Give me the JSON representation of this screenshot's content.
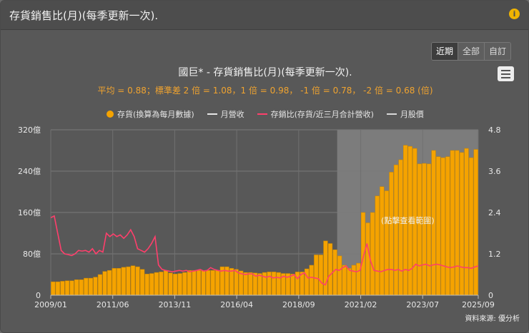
{
  "header": {
    "title": "存貨銷售比(月)(每季更新一次).",
    "info_icon": "info-icon"
  },
  "range_buttons": [
    "近期",
    "全部",
    "自訂"
  ],
  "active_range": "近期",
  "menu_icon": "hamburger-menu-icon",
  "source": "資料來源: 優分析",
  "colors": {
    "inventory": "#f5a300",
    "ratio": "#ff3f6c",
    "revenue": "#e6e6e6",
    "price": "#d9d9d9",
    "highlight": "#888888"
  },
  "chart_data": {
    "type": "bar",
    "title": "國巨* - 存貨銷售比(月)(每季更新一次).",
    "subtitle": "平均 = 0.88；標準差 2 倍 = 1.08，1 倍 = 0.98， -1 倍 = 0.78， -2 倍 = 0.68 (倍)",
    "legend": [
      "存貨(換算為每月數據)",
      "月營收",
      "存銷比(存貨/近三月合計營收)",
      "月股價"
    ],
    "legend_placement": "top",
    "x_tick_labels": [
      "2009/01",
      "2011/06",
      "2013/11",
      "2016/04",
      "2018/09",
      "2021/02",
      "2023/07",
      "2025/09"
    ],
    "y_left_ticks": [
      "0",
      "80億",
      "160億",
      "240億",
      "320億"
    ],
    "y_right_ticks": [
      "0",
      "1.2",
      "2.4",
      "3.6",
      "4.8"
    ],
    "ylim_left": [
      0,
      320
    ],
    "ylim_right": [
      0,
      4.8
    ],
    "highlight_label": "(點擊查看範圍)",
    "highlight_range": [
      "2020/03",
      "2025/09"
    ],
    "series": [
      {
        "name": "存貨(換算為每月數據)",
        "kind": "bar",
        "axis": "left",
        "unit": "億",
        "values": [
          26,
          26,
          27,
          28,
          28,
          30,
          30,
          33,
          33,
          35,
          40,
          46,
          48,
          52,
          52,
          54,
          55,
          57,
          55,
          50,
          41,
          42,
          44,
          45,
          48,
          43,
          41,
          42,
          44,
          48,
          48,
          48,
          48,
          48,
          48,
          48,
          55,
          55,
          52,
          50,
          47,
          44,
          44,
          43,
          42,
          44,
          45,
          45,
          44,
          42,
          42,
          41,
          45,
          45,
          51,
          58,
          78,
          78,
          105,
          100,
          88,
          76,
          58,
          52,
          58,
          62,
          160,
          140,
          160,
          192,
          210,
          202,
          238,
          252,
          262,
          290,
          288,
          284,
          254,
          255,
          254,
          280,
          268,
          266,
          268,
          280,
          280,
          276,
          284,
          266,
          282
        ]
      },
      {
        "name": "存銷比(存貨/近三月合計營收)",
        "kind": "line",
        "axis": "right",
        "unit": "倍",
        "x_start": "2009/01",
        "x_end": "2025/09",
        "values": [
          2.25,
          2.3,
          1.8,
          1.3,
          1.2,
          1.18,
          1.15,
          1.2,
          1.3,
          1.28,
          1.3,
          1.25,
          1.35,
          1.2,
          1.3,
          1.25,
          1.8,
          1.7,
          1.78,
          1.7,
          1.75,
          1.65,
          1.75,
          1.9,
          1.7,
          1.35,
          1.3,
          1.25,
          1.35,
          1.5,
          1.7,
          0.88,
          0.75,
          0.72,
          0.7,
          0.68,
          0.7,
          0.72,
          0.7,
          0.72,
          0.68,
          0.7,
          0.72,
          0.75,
          0.7,
          0.72,
          0.8,
          0.75,
          0.72,
          0.7,
          0.72,
          0.7,
          0.7,
          0.72,
          0.65,
          0.62,
          0.6,
          0.62,
          0.62,
          0.55,
          0.58,
          0.55,
          0.52,
          0.55,
          0.5,
          0.52,
          0.5,
          0.55,
          0.52,
          0.55,
          0.6,
          0.48,
          0.6,
          0.65,
          0.5,
          0.52,
          0.5,
          0.48,
          0.35,
          0.3,
          0.55,
          0.65,
          0.75,
          0.72,
          0.8,
          0.85,
          0.72,
          0.7,
          0.68,
          0.72,
          1.15,
          1.5,
          1.0,
          0.72,
          0.7,
          0.68,
          0.72,
          0.75,
          0.75,
          0.72,
          0.75,
          0.7,
          0.75,
          0.72,
          0.78,
          0.9,
          0.85,
          0.88,
          0.9,
          0.85,
          0.88,
          0.9,
          0.88,
          0.85,
          0.82,
          0.8,
          0.82,
          0.85,
          0.82,
          0.8,
          0.8,
          0.78,
          0.82,
          0.85
        ]
      }
    ]
  }
}
